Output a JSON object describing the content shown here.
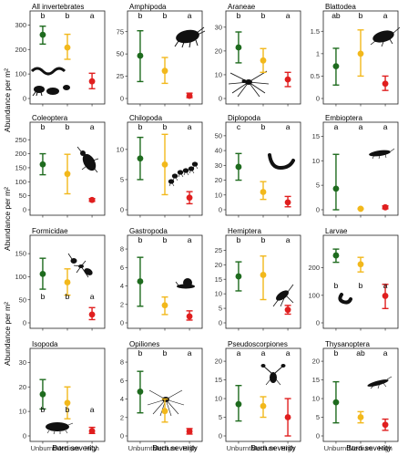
{
  "figure": {
    "y_axis_title": "Abundance per m²",
    "x_axis_title": "Burn severity"
  },
  "chart_data": [
    {
      "type": "scatter",
      "title": "All invertebrates",
      "categories": [
        "Unburnt",
        "Medium",
        "High"
      ],
      "yticks": [
        0,
        100,
        200,
        300
      ],
      "ylim": [
        0,
        320
      ],
      "values": [
        260,
        208,
        70
      ],
      "lower": [
        222,
        160,
        40
      ],
      "upper": [
        295,
        262,
        103
      ],
      "letters": [
        "b",
        "b",
        "a"
      ],
      "colors": [
        "#1e6b1e",
        "#f2b81b",
        "#e01e1e"
      ],
      "animal": "invertebrate-group-icon"
    },
    {
      "type": "scatter",
      "title": "Amphipoda",
      "categories": [
        "Unburnt",
        "Medium",
        "High"
      ],
      "yticks": [
        0,
        25,
        50,
        75
      ],
      "ylim": [
        0,
        88
      ],
      "values": [
        48,
        31,
        3
      ],
      "lower": [
        19,
        17,
        1
      ],
      "upper": [
        76,
        46,
        6
      ],
      "letters": [
        "b",
        "b",
        "a"
      ],
      "colors": [
        "#1e6b1e",
        "#f2b81b",
        "#e01e1e"
      ],
      "animal": "amphipod-icon"
    },
    {
      "type": "scatter",
      "title": "Araneae",
      "categories": [
        "Unburnt",
        "Medium",
        "High"
      ],
      "yticks": [
        0,
        10,
        20,
        30
      ],
      "ylim": [
        0,
        33
      ],
      "values": [
        21.5,
        16,
        8
      ],
      "lower": [
        15,
        11,
        5
      ],
      "upper": [
        28,
        21,
        11
      ],
      "letters": [
        "b",
        "b",
        "a"
      ],
      "colors": [
        "#1e6b1e",
        "#f2b81b",
        "#e01e1e"
      ],
      "animal": "spider-icon"
    },
    {
      "type": "scatter",
      "title": "Blattodea",
      "categories": [
        "Unburnt",
        "Medium",
        "High"
      ],
      "yticks": [
        0,
        0.5,
        1,
        1.5
      ],
      "ylim": [
        0,
        1.75
      ],
      "values": [
        0.72,
        1.0,
        0.33
      ],
      "lower": [
        0.3,
        0.5,
        0.18
      ],
      "upper": [
        1.12,
        1.53,
        0.5
      ],
      "letters": [
        "ab",
        "b",
        "a"
      ],
      "colors": [
        "#1e6b1e",
        "#f2b81b",
        "#e01e1e"
      ],
      "animal": "cockroach-icon"
    },
    {
      "type": "scatter",
      "title": "Coleoptera",
      "categories": [
        "Unburnt",
        "Medium",
        "High"
      ],
      "yticks": [
        0,
        50,
        100,
        150,
        200,
        250
      ],
      "ylim": [
        0,
        280
      ],
      "values": [
        162,
        128,
        35
      ],
      "lower": [
        125,
        57,
        30
      ],
      "upper": [
        200,
        198,
        40
      ],
      "letters": [
        "b",
        "b",
        "a"
      ],
      "colors": [
        "#1e6b1e",
        "#f2b81b",
        "#e01e1e"
      ],
      "animal": "beetle-icon"
    },
    {
      "type": "scatter",
      "title": "Chilopoda",
      "categories": [
        "Unburnt",
        "Medium",
        "High"
      ],
      "yticks": [
        0,
        5,
        10
      ],
      "ylim": [
        0,
        13
      ],
      "values": [
        8.5,
        7.5,
        2
      ],
      "lower": [
        5,
        2.5,
        1
      ],
      "upper": [
        12,
        12.5,
        3
      ],
      "letters": [
        "b",
        "b",
        "a"
      ],
      "colors": [
        "#1e6b1e",
        "#f2b81b",
        "#e01e1e"
      ],
      "animal": "centipede-icon"
    },
    {
      "type": "scatter",
      "title": "Diplopoda",
      "categories": [
        "Unburnt",
        "Medium",
        "High"
      ],
      "yticks": [
        0,
        10,
        20,
        30,
        40,
        50
      ],
      "ylim": [
        0,
        53
      ],
      "values": [
        29,
        12,
        5
      ],
      "lower": [
        20,
        7,
        2
      ],
      "upper": [
        38,
        19,
        9
      ],
      "letters": [
        "c",
        "b",
        "a"
      ],
      "colors": [
        "#1e6b1e",
        "#f2b81b",
        "#e01e1e"
      ],
      "animal": "millipede-icon"
    },
    {
      "type": "scatter",
      "title": "Embioptera",
      "categories": [
        "Unburnt",
        "Medium",
        "High"
      ],
      "yticks": [
        0,
        5,
        10,
        15
      ],
      "ylim": [
        0,
        16
      ],
      "values": [
        4.3,
        0.2,
        0.5
      ],
      "lower": [
        0,
        0.1,
        0.2
      ],
      "upper": [
        11.3,
        0.3,
        0.8
      ],
      "letters": [
        "a",
        "a",
        "a"
      ],
      "colors": [
        "#1e6b1e",
        "#f2b81b",
        "#e01e1e"
      ],
      "animal": "webspinner-icon"
    },
    {
      "type": "scatter",
      "title": "Formicidae",
      "categories": [
        "Unburnt",
        "Medium",
        "High"
      ],
      "yticks": [
        0,
        50,
        100,
        150
      ],
      "ylim": [
        0,
        170
      ],
      "values": [
        106,
        88,
        18
      ],
      "lower": [
        73,
        60,
        7
      ],
      "upper": [
        140,
        117,
        33
      ],
      "letters": [
        "b",
        "b",
        "a"
      ],
      "colors": [
        "#1e6b1e",
        "#f2b81b",
        "#e01e1e"
      ],
      "animal": "ant-icon"
    },
    {
      "type": "scatter",
      "title": "Gastropoda",
      "categories": [
        "Unburnt",
        "Medium",
        "High"
      ],
      "yticks": [
        0,
        2,
        4,
        6,
        8
      ],
      "ylim": [
        0,
        8.5
      ],
      "values": [
        4.5,
        1.9,
        0.7
      ],
      "lower": [
        1.8,
        0.9,
        0.3
      ],
      "upper": [
        7.1,
        2.8,
        1.3
      ],
      "letters": [
        "b",
        "b",
        "a"
      ],
      "colors": [
        "#1e6b1e",
        "#f2b81b",
        "#e01e1e"
      ],
      "animal": "snail-icon"
    },
    {
      "type": "scatter",
      "title": "Hemiptera",
      "categories": [
        "Unburnt",
        "Medium",
        "High"
      ],
      "yticks": [
        0,
        5,
        10,
        15,
        20,
        25
      ],
      "ylim": [
        0,
        27
      ],
      "values": [
        16,
        16.5,
        4.5
      ],
      "lower": [
        11,
        8,
        3
      ],
      "upper": [
        21,
        23,
        6
      ],
      "letters": [
        "b",
        "b",
        "a"
      ],
      "colors": [
        "#1e6b1e",
        "#f2b81b",
        "#e01e1e"
      ],
      "animal": "bug-icon"
    },
    {
      "type": "scatter",
      "title": "Larvae",
      "categories": [
        "Unburnt",
        "Medium",
        "High"
      ],
      "yticks": [
        0,
        100,
        200
      ],
      "ylim": [
        0,
        285
      ],
      "values": [
        245,
        213,
        98
      ],
      "lower": [
        220,
        185,
        52
      ],
      "upper": [
        268,
        238,
        140
      ],
      "letters": [
        "b",
        "b",
        "a"
      ],
      "colors": [
        "#1e6b1e",
        "#f2b81b",
        "#e01e1e"
      ],
      "animal": "larva-icon"
    },
    {
      "type": "scatter",
      "title": "Isopoda",
      "categories": [
        "Unburnt",
        "Medium",
        "High"
      ],
      "yticks": [
        0,
        10,
        20,
        30
      ],
      "ylim": [
        0,
        32
      ],
      "values": [
        17,
        13.5,
        2
      ],
      "lower": [
        11,
        7,
        1
      ],
      "upper": [
        23,
        20,
        3.5
      ],
      "letters": [
        "b",
        "b",
        "a"
      ],
      "colors": [
        "#1e6b1e",
        "#f2b81b",
        "#e01e1e"
      ],
      "animal": "isopod-icon"
    },
    {
      "type": "scatter",
      "title": "Opiliones",
      "categories": [
        "Unburnt",
        "Medium",
        "High"
      ],
      "yticks": [
        0,
        2,
        4,
        6,
        8
      ],
      "ylim": [
        0,
        8.5
      ],
      "values": [
        4.8,
        2.7,
        0.5
      ],
      "lower": [
        2.5,
        1.5,
        0.2
      ],
      "upper": [
        7.0,
        4.0,
        0.8
      ],
      "letters": [
        "b",
        "b",
        "a"
      ],
      "colors": [
        "#1e6b1e",
        "#f2b81b",
        "#e01e1e"
      ],
      "animal": "harvestman-icon"
    },
    {
      "type": "scatter",
      "title": "Pseudoscorpiones",
      "categories": [
        "Unburnt",
        "Medium",
        "High"
      ],
      "yticks": [
        0,
        5,
        10,
        15,
        20
      ],
      "ylim": [
        0,
        21
      ],
      "values": [
        8.5,
        8,
        5
      ],
      "lower": [
        4,
        5,
        0
      ],
      "upper": [
        13.5,
        10.5,
        10
      ],
      "letters": [
        "a",
        "a",
        "a"
      ],
      "colors": [
        "#1e6b1e",
        "#f2b81b",
        "#e01e1e"
      ],
      "animal": "pseudoscorpion-icon"
    },
    {
      "type": "scatter",
      "title": "Thysanoptera",
      "categories": [
        "Unburnt",
        "Medium",
        "High"
      ],
      "yticks": [
        0,
        5,
        10,
        15,
        20
      ],
      "ylim": [
        0,
        21
      ],
      "values": [
        9,
        5,
        3
      ],
      "lower": [
        3.5,
        3.5,
        1.5
      ],
      "upper": [
        14.5,
        6.5,
        4.5
      ],
      "letters": [
        "b",
        "ab",
        "a"
      ],
      "colors": [
        "#1e6b1e",
        "#f2b81b",
        "#e01e1e"
      ],
      "animal": "thrips-icon"
    }
  ]
}
